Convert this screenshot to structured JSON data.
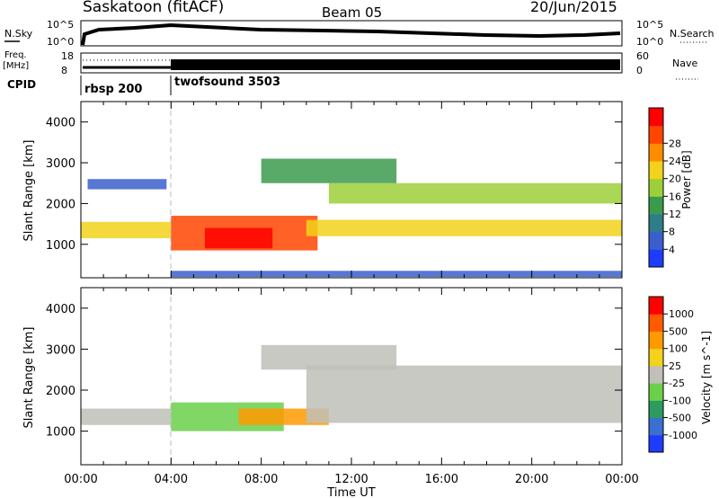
{
  "header": {
    "station": "Saskatoon (fitACF)",
    "beam": "Beam 05",
    "date": "20/Jun/2015"
  },
  "top_panels": {
    "nsky_label": "N.Sky",
    "nsky_ticks": [
      "10^5",
      "10^0"
    ],
    "nsearch_label": "N.Search",
    "nsearch_ticks": [
      "10^5",
      "10^0"
    ],
    "freq_label": "Freq.",
    "freq_unit": "[MHz]",
    "freq_ticks": [
      "18",
      "8"
    ],
    "nave_label": "Nave",
    "nave_ticks": [
      "60",
      "0"
    ],
    "cpid_label": "CPID",
    "cpid_segments": [
      {
        "name": "rbsp 200",
        "start_hour": 0
      },
      {
        "name": "twofsound 3503",
        "start_hour": 4
      }
    ]
  },
  "chart_data": [
    {
      "type": "heatmap",
      "title": "",
      "xlabel": "Time UT",
      "ylabel": "Slant Range [km]",
      "xlim": [
        0,
        24
      ],
      "ylim": [
        180,
        4500
      ],
      "x_tick_labels": [
        "00:00",
        "04:00",
        "08:00",
        "12:00",
        "16:00",
        "20:00",
        "00:00"
      ],
      "y_tick_values": [
        1000,
        2000,
        3000,
        4000
      ],
      "colorbar": {
        "label": "Power [dB]",
        "tick_labels": [
          "4",
          "8",
          "12",
          "16",
          "20",
          "24",
          "28"
        ],
        "colors": [
          "#1e3cff",
          "#3a5fcc",
          "#2e7d8a",
          "#3c9a4e",
          "#9ccf3a",
          "#f2d21a",
          "#ff8c00",
          "#ff4500",
          "#ff0000"
        ]
      },
      "regions": [
        {
          "t0": 0.0,
          "t1": 4.0,
          "r0": 1150,
          "r1": 1550,
          "level": 5
        },
        {
          "t0": 0.3,
          "t1": 3.8,
          "r0": 2350,
          "r1": 2600,
          "level": 1
        },
        {
          "t0": 4.0,
          "t1": 10.5,
          "r0": 850,
          "r1": 1700,
          "level": 7
        },
        {
          "t0": 5.5,
          "t1": 8.5,
          "r0": 900,
          "r1": 1400,
          "level": 8
        },
        {
          "t0": 10.0,
          "t1": 24.0,
          "r0": 1200,
          "r1": 1600,
          "level": 5
        },
        {
          "t0": 11.0,
          "t1": 24.0,
          "r0": 2000,
          "r1": 2500,
          "level": 4
        },
        {
          "t0": 8.0,
          "t1": 14.0,
          "r0": 2500,
          "r1": 3100,
          "level": 3
        },
        {
          "t0": 4.0,
          "t1": 24.0,
          "r0": 200,
          "r1": 350,
          "level": 1
        }
      ]
    },
    {
      "type": "heatmap",
      "title": "",
      "xlabel": "Time UT",
      "ylabel": "Slant Range [km]",
      "xlim": [
        0,
        24
      ],
      "ylim": [
        180,
        4500
      ],
      "x_tick_labels": [
        "00:00",
        "04:00",
        "08:00",
        "12:00",
        "16:00",
        "20:00",
        "00:00"
      ],
      "y_tick_values": [
        1000,
        2000,
        3000,
        4000
      ],
      "colorbar": {
        "label": "Velocity [m s^-1]",
        "tick_labels": [
          "1000",
          "500",
          "100",
          "25",
          "-25",
          "-100",
          "-500",
          "-1000"
        ],
        "colors": [
          "#1e3cff",
          "#3a70d0",
          "#2e9a5e",
          "#6ad04a",
          "#c0c0b8",
          "#f2d21a",
          "#ff9a00",
          "#ff5a00",
          "#ff0000"
        ]
      },
      "regions": [
        {
          "t0": 0.0,
          "t1": 4.0,
          "r0": 1150,
          "r1": 1550,
          "level": 4
        },
        {
          "t0": 4.0,
          "t1": 9.0,
          "r0": 1000,
          "r1": 1700,
          "level": 3
        },
        {
          "t0": 7.0,
          "t1": 11.0,
          "r0": 1150,
          "r1": 1550,
          "level": 6
        },
        {
          "t0": 10.0,
          "t1": 24.0,
          "r0": 1200,
          "r1": 2600,
          "level": 4
        },
        {
          "t0": 8.0,
          "t1": 14.0,
          "r0": 2500,
          "r1": 3100,
          "level": 4
        }
      ]
    }
  ]
}
